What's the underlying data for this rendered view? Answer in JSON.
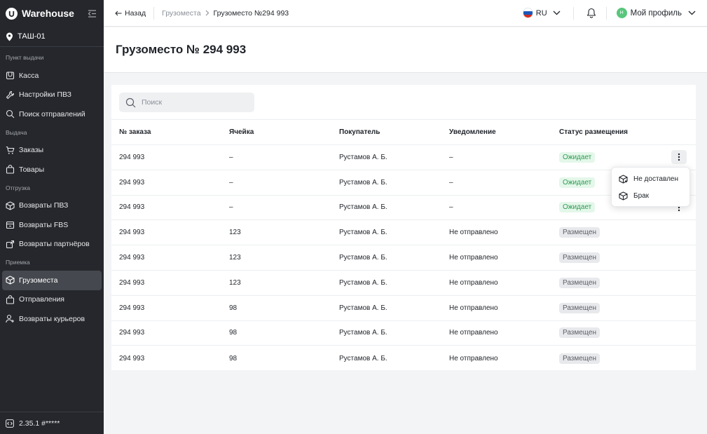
{
  "sidebar": {
    "brand": "Warehouse",
    "location": "ТАШ-01",
    "sections": [
      {
        "title": "Пункт выдачи",
        "items": [
          "Касса",
          "Настройки ПВЗ",
          "Поиск отправлений"
        ]
      },
      {
        "title": "Выдача",
        "items": [
          "Заказы",
          "Товары"
        ]
      },
      {
        "title": "Отгрузка",
        "items": [
          "Возвраты ПВЗ",
          "Возвраты FBS",
          "Возвраты партнёров"
        ]
      },
      {
        "title": "Приемка",
        "items": [
          "Грузоместа",
          "Отправления",
          "Возвраты курьеров"
        ]
      }
    ],
    "active_item": "Грузоместа",
    "version": "2.35.1 #*****"
  },
  "topbar": {
    "back_label": "Назад",
    "breadcrumb_parent": "Грузоместа",
    "breadcrumb_current": "Грузоместо №294 993",
    "language": "RU",
    "avatar_initial": "Н",
    "profile_label": "Мой профиль"
  },
  "page": {
    "title": "Грузоместо № 294 993"
  },
  "search": {
    "placeholder": "Поиск"
  },
  "table": {
    "columns": [
      "№ заказа",
      "Ячейка",
      "Покупатель",
      "Уведомление",
      "Статус размещения"
    ],
    "rows": [
      {
        "order": "294 993",
        "cell": "–",
        "buyer": "Рустамов А. Б.",
        "notification": "–",
        "status": "Ожидает",
        "status_type": "wait"
      },
      {
        "order": "294 993",
        "cell": "–",
        "buyer": "Рустамов А. Б.",
        "notification": "–",
        "status": "Ожидает",
        "status_type": "wait"
      },
      {
        "order": "294 993",
        "cell": "–",
        "buyer": "Рустамов А. Б.",
        "notification": "–",
        "status": "Ожидает",
        "status_type": "wait"
      },
      {
        "order": "294 993",
        "cell": "123",
        "buyer": "Рустамов А. Б.",
        "notification": "Не отправлено",
        "status": "Размещен",
        "status_type": "placed"
      },
      {
        "order": "294 993",
        "cell": "123",
        "buyer": "Рустамов А. Б.",
        "notification": "Не отправлено",
        "status": "Размещен",
        "status_type": "placed"
      },
      {
        "order": "294 993",
        "cell": "123",
        "buyer": "Рустамов А. Б.",
        "notification": "Не отправлено",
        "status": "Размещен",
        "status_type": "placed"
      },
      {
        "order": "294 993",
        "cell": "98",
        "buyer": "Рустамов А. Б.",
        "notification": "Не отправлено",
        "status": "Размещен",
        "status_type": "placed"
      },
      {
        "order": "294 993",
        "cell": "98",
        "buyer": "Рустамов А. Б.",
        "notification": "Не отправлено",
        "status": "Размещен",
        "status_type": "placed"
      },
      {
        "order": "294 993",
        "cell": "98",
        "buyer": "Рустамов А. Б.",
        "notification": "Не отправлено",
        "status": "Размещен",
        "status_type": "placed"
      }
    ]
  },
  "row_menu": {
    "items": [
      "Не доставлен",
      "Брак"
    ]
  },
  "colors": {
    "sidebar_bg": "#25272c",
    "accent_green": "#2e9a51",
    "badge_wait_bg": "#e4f7ea",
    "badge_placed_bg": "#e8e9ec"
  }
}
